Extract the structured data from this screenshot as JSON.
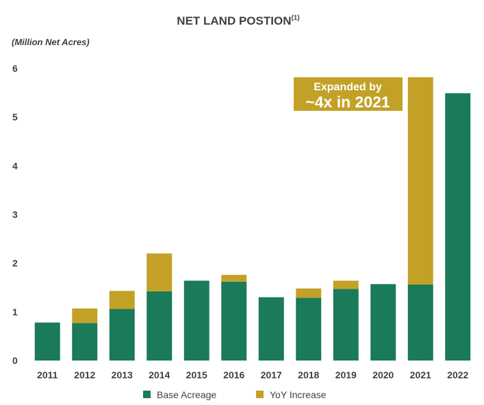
{
  "chart_data": {
    "type": "bar",
    "stacked": true,
    "title": "NET LAND POSTION",
    "title_superscript": "(1)",
    "ylabel": "(Million Net Acres)",
    "xlabel": "",
    "ylim": [
      0,
      6
    ],
    "yticks": [
      "0",
      "1",
      "2",
      "3",
      "4",
      "5",
      "6"
    ],
    "grid": false,
    "categories": [
      "2011",
      "2012",
      "2013",
      "2014",
      "2015",
      "2016",
      "2017",
      "2018",
      "2019",
      "2020",
      "2021",
      "2022"
    ],
    "series": [
      {
        "name": "Base Acreage",
        "color": "#1a7a5a",
        "values": [
          0.78,
          0.77,
          1.06,
          1.42,
          1.64,
          1.62,
          1.3,
          1.29,
          1.47,
          1.57,
          1.56,
          5.49
        ]
      },
      {
        "name": "YoY Increase",
        "color": "#c3a126",
        "values": [
          0,
          0.3,
          0.37,
          0.78,
          0,
          0.14,
          0,
          0.19,
          0.17,
          0,
          4.26,
          0
        ]
      }
    ],
    "legend_position": "bottom",
    "annotation": {
      "line1": "Expanded by",
      "line2": "~4x in 2021",
      "color": "#c3a126",
      "target": "2021"
    }
  }
}
